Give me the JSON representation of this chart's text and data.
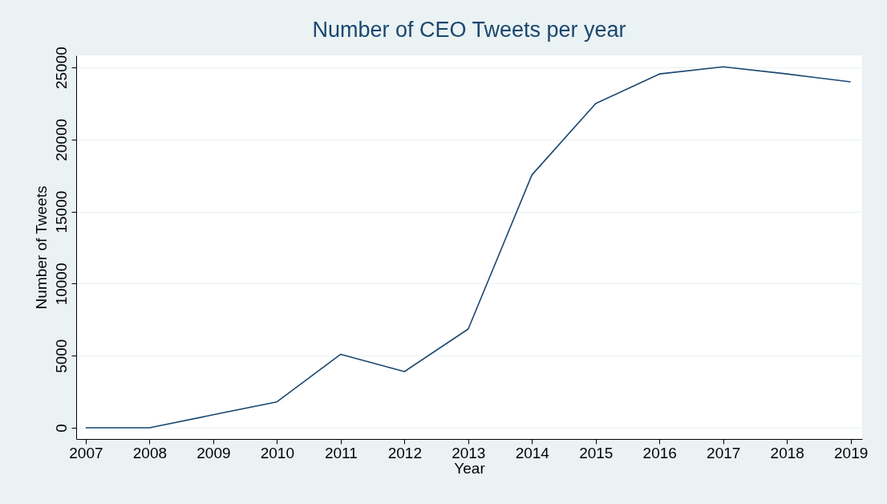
{
  "chart_data": {
    "type": "line",
    "title": "Number of CEO Tweets per year",
    "xlabel": "Year",
    "ylabel": "Number of Tweets",
    "x": [
      2007,
      2008,
      2009,
      2010,
      2011,
      2012,
      2013,
      2014,
      2015,
      2016,
      2017,
      2018,
      2019
    ],
    "series": [
      {
        "color": "#1a476f",
        "values": [
          0,
          0,
          900,
          1800,
          5100,
          3900,
          6850,
          17550,
          22500,
          24550,
          25050,
          24550,
          24000
        ]
      }
    ],
    "xlim": [
      2006.85,
      2019.18
    ],
    "xticks": [
      2007,
      2008,
      2009,
      2010,
      2011,
      2012,
      2013,
      2014,
      2015,
      2016,
      2017,
      2018,
      2019
    ],
    "ylim": [
      -780,
      25840
    ],
    "yticks": [
      0,
      5000,
      10000,
      15000,
      20000,
      25000
    ],
    "grid": "y",
    "legend": false,
    "marker": "none",
    "line_style": "solid"
  }
}
